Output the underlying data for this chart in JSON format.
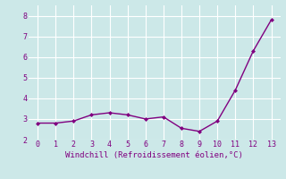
{
  "x": [
    0,
    1,
    2,
    3,
    4,
    5,
    6,
    7,
    8,
    9,
    10,
    11,
    12,
    13
  ],
  "y": [
    2.8,
    2.8,
    2.9,
    3.2,
    3.3,
    3.2,
    3.0,
    3.1,
    2.55,
    2.4,
    2.9,
    4.4,
    6.3,
    7.8
  ],
  "line_color": "#800080",
  "marker": "D",
  "marker_size": 2.0,
  "line_width": 1.0,
  "xlabel": "Windchill (Refroidissement éolien,°C)",
  "xlabel_fontsize": 6.5,
  "xlim": [
    -0.5,
    13.5
  ],
  "ylim": [
    2.0,
    8.5
  ],
  "yticks": [
    2,
    3,
    4,
    5,
    6,
    7,
    8
  ],
  "xticks": [
    0,
    1,
    2,
    3,
    4,
    5,
    6,
    7,
    8,
    9,
    10,
    11,
    12,
    13
  ],
  "background_color": "#cce8e8",
  "grid_color": "#ffffff",
  "tick_color": "#800080",
  "label_color": "#800080",
  "tick_fontsize": 6.0
}
